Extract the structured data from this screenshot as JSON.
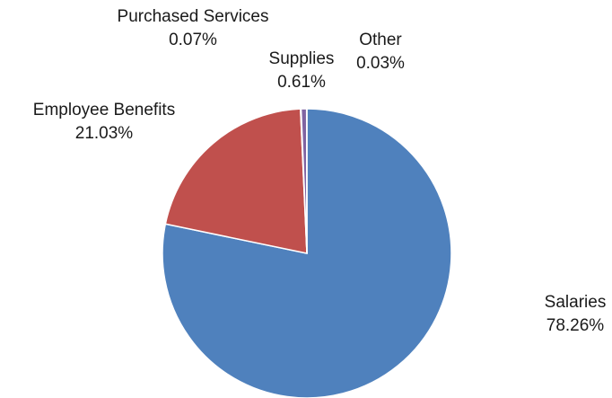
{
  "chart_data": {
    "type": "pie",
    "title": "",
    "start_angle_deg": 0,
    "direction": "clockwise",
    "legend": "none",
    "slices": [
      {
        "name": "Salaries",
        "value": 78.26,
        "label": "78.26%",
        "color": "#4f81bd"
      },
      {
        "name": "Employee Benefits",
        "value": 21.03,
        "label": "21.03%",
        "color": "#c0504d"
      },
      {
        "name": "Purchased Services",
        "value": 0.07,
        "label": "0.07%",
        "color": "#9bbb59"
      },
      {
        "name": "Supplies",
        "value": 0.61,
        "label": "0.61%",
        "color": "#8064a2"
      },
      {
        "name": "Other",
        "value": 0.03,
        "label": "0.03%",
        "color": "#4bacc6"
      }
    ]
  }
}
